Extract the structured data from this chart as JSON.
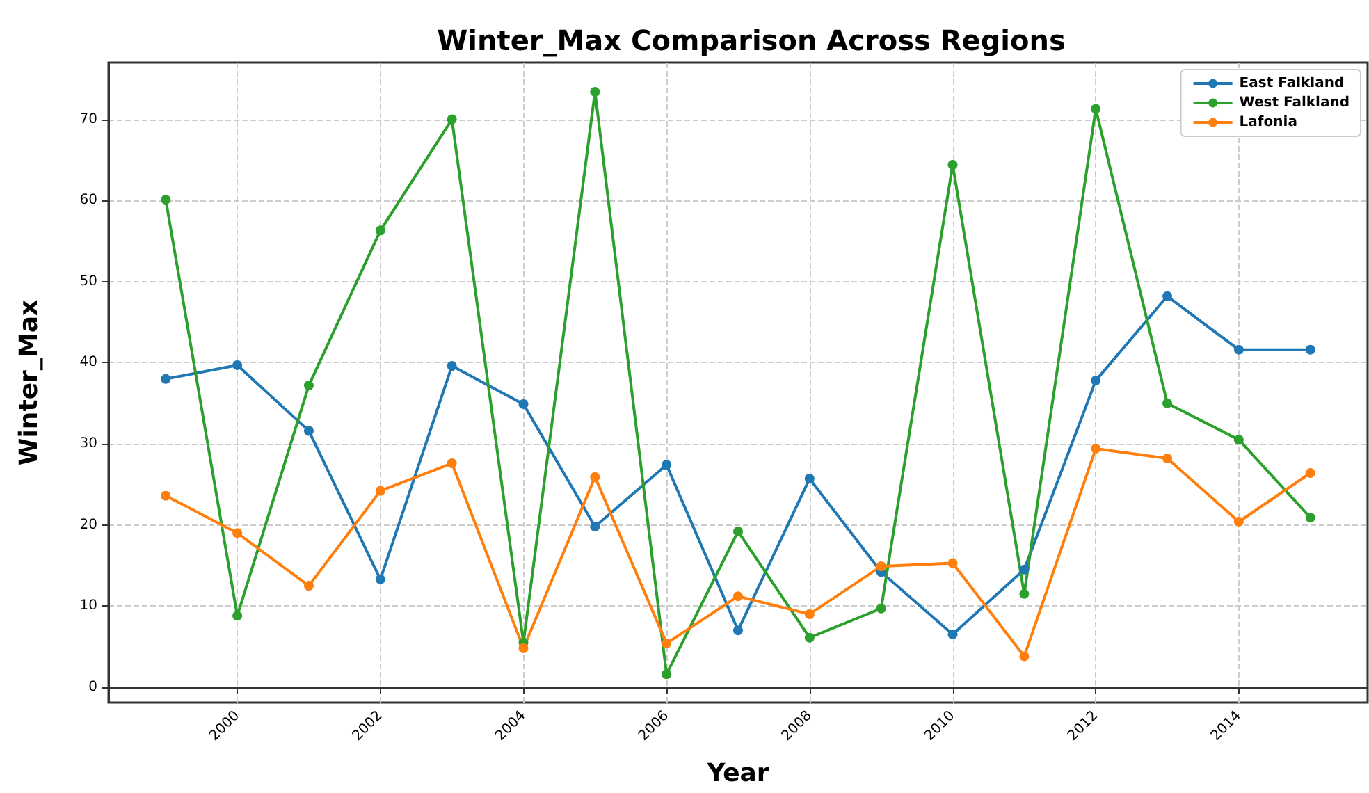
{
  "chart_data": {
    "type": "line",
    "title": "Winter_Max Comparison Across Regions",
    "xlabel": "Year",
    "ylabel": "Winter_Max",
    "x": [
      1999,
      2000,
      2001,
      2002,
      2003,
      2004,
      2005,
      2006,
      2007,
      2008,
      2009,
      2010,
      2011,
      2012,
      2013,
      2014,
      2015
    ],
    "series": [
      {
        "name": "East Falkland",
        "color": "#1f77b4",
        "values": [
          38.0,
          39.7,
          31.6,
          13.3,
          39.6,
          34.9,
          19.8,
          27.4,
          7.0,
          25.7,
          14.2,
          6.5,
          14.5,
          37.8,
          48.2,
          41.6,
          41.6
        ]
      },
      {
        "name": "West Falkland",
        "color": "#2ca02c",
        "values": [
          60.1,
          8.8,
          37.2,
          56.3,
          70.0,
          5.5,
          73.4,
          1.6,
          19.2,
          6.1,
          9.7,
          64.4,
          11.5,
          71.3,
          35.0,
          30.5,
          20.9
        ]
      },
      {
        "name": "Lafonia",
        "color": "#ff7f0e",
        "values": [
          23.6,
          19.0,
          12.5,
          24.2,
          27.6,
          4.8,
          25.9,
          5.4,
          11.2,
          9.0,
          14.9,
          15.3,
          3.8,
          29.4,
          28.2,
          20.4,
          26.4
        ]
      }
    ],
    "xlim": [
      1998.2,
      2015.8
    ],
    "xticks": [
      2000,
      2002,
      2004,
      2006,
      2008,
      2010,
      2012,
      2014
    ],
    "ylim": [
      -1.9,
      77
    ],
    "yticks": [
      0,
      10,
      20,
      30,
      40,
      50,
      60,
      70
    ],
    "grid": true,
    "legend": "top right",
    "marker": "circle",
    "line_style": "solid"
  }
}
